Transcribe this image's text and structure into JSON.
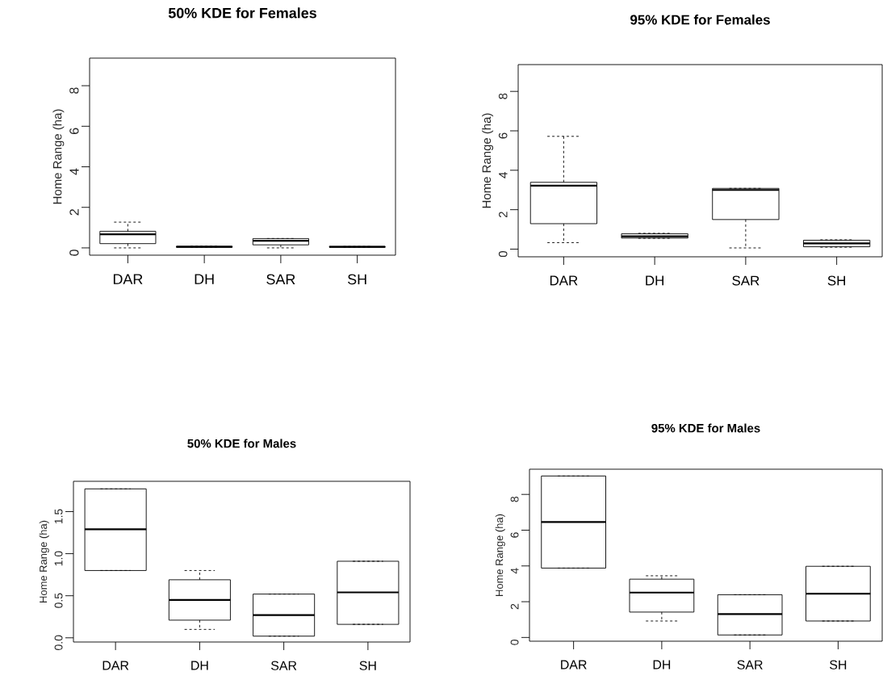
{
  "chart_data": [
    {
      "type": "box",
      "title": "50% KDE for Females",
      "ylabel": "Home Range (ha)",
      "categories": [
        "DAR",
        "DH",
        "SAR",
        "SH"
      ],
      "ylim": [
        -0.36,
        9.36
      ],
      "yticks": [
        0,
        2,
        4,
        6,
        8
      ],
      "boxes": [
        {
          "low": 0,
          "q1": 0.21,
          "median": 0.67,
          "q3": 0.82,
          "high": 1.27
        },
        {
          "low": 0.03,
          "q1": 0.03,
          "median": 0.05,
          "q3": 0.08,
          "high": 0.08
        },
        {
          "low": 0,
          "q1": 0.15,
          "median": 0.35,
          "q3": 0.46,
          "high": 0.46
        },
        {
          "low": 0.03,
          "q1": 0.03,
          "median": 0.05,
          "q3": 0.07,
          "high": 0.07
        }
      ]
    },
    {
      "type": "box",
      "title": "95% KDE for Females",
      "ylabel": "Home Range (ha)",
      "categories": [
        "DAR",
        "DH",
        "SAR",
        "SH"
      ],
      "ylim": [
        -0.39,
        9.36
      ],
      "yticks": [
        0,
        2,
        4,
        6,
        8
      ],
      "boxes": [
        {
          "low": 0.33,
          "q1": 1.29,
          "median": 3.22,
          "q3": 3.39,
          "high": 5.72
        },
        {
          "low": 0.55,
          "q1": 0.56,
          "median": 0.65,
          "q3": 0.78,
          "high": 0.8
        },
        {
          "low": 0.06,
          "q1": 1.5,
          "median": 3.0,
          "q3": 3.08,
          "high": 3.08
        },
        {
          "low": 0.1,
          "q1": 0.12,
          "median": 0.29,
          "q3": 0.45,
          "high": 0.47
        }
      ]
    },
    {
      "type": "box",
      "title": "50% KDE for Males",
      "ylabel": "Home Range (ha)",
      "categories": [
        "DAR",
        "DH",
        "SAR",
        "SH"
      ],
      "ylim": [
        -0.05,
        1.86
      ],
      "yticks": [
        {
          "value": 0,
          "label": "0.0"
        },
        {
          "value": 0.5,
          "label": "0.5"
        },
        {
          "value": 1,
          "label": "1.0"
        },
        {
          "value": 1.5,
          "label": "1.5"
        }
      ],
      "boxes": [
        {
          "low": 0.8,
          "q1": 0.8,
          "median": 1.29,
          "q3": 1.77,
          "high": 1.77
        },
        {
          "low": 0.1,
          "q1": 0.21,
          "median": 0.45,
          "q3": 0.69,
          "high": 0.8
        },
        {
          "low": 0.02,
          "q1": 0.02,
          "median": 0.27,
          "q3": 0.52,
          "high": 0.52
        },
        {
          "low": 0.16,
          "q1": 0.16,
          "median": 0.54,
          "q3": 0.91,
          "high": 0.91
        }
      ]
    },
    {
      "type": "box",
      "title": "95% KDE for Males",
      "ylabel": "Home Range (ha)",
      "categories": [
        "DAR",
        "DH",
        "SAR",
        "SH"
      ],
      "ylim": [
        -0.21,
        9.41
      ],
      "yticks": [
        0,
        2,
        4,
        6,
        8
      ],
      "boxes": [
        {
          "low": 3.88,
          "q1": 3.88,
          "median": 6.46,
          "q3": 9.03,
          "high": 9.03
        },
        {
          "low": 0.92,
          "q1": 1.42,
          "median": 2.51,
          "q3": 3.26,
          "high": 3.45
        },
        {
          "low": 0.14,
          "q1": 0.14,
          "median": 1.31,
          "q3": 2.39,
          "high": 2.39
        },
        {
          "low": 0.92,
          "q1": 0.92,
          "median": 2.45,
          "q3": 3.98,
          "high": 3.98
        }
      ]
    }
  ]
}
